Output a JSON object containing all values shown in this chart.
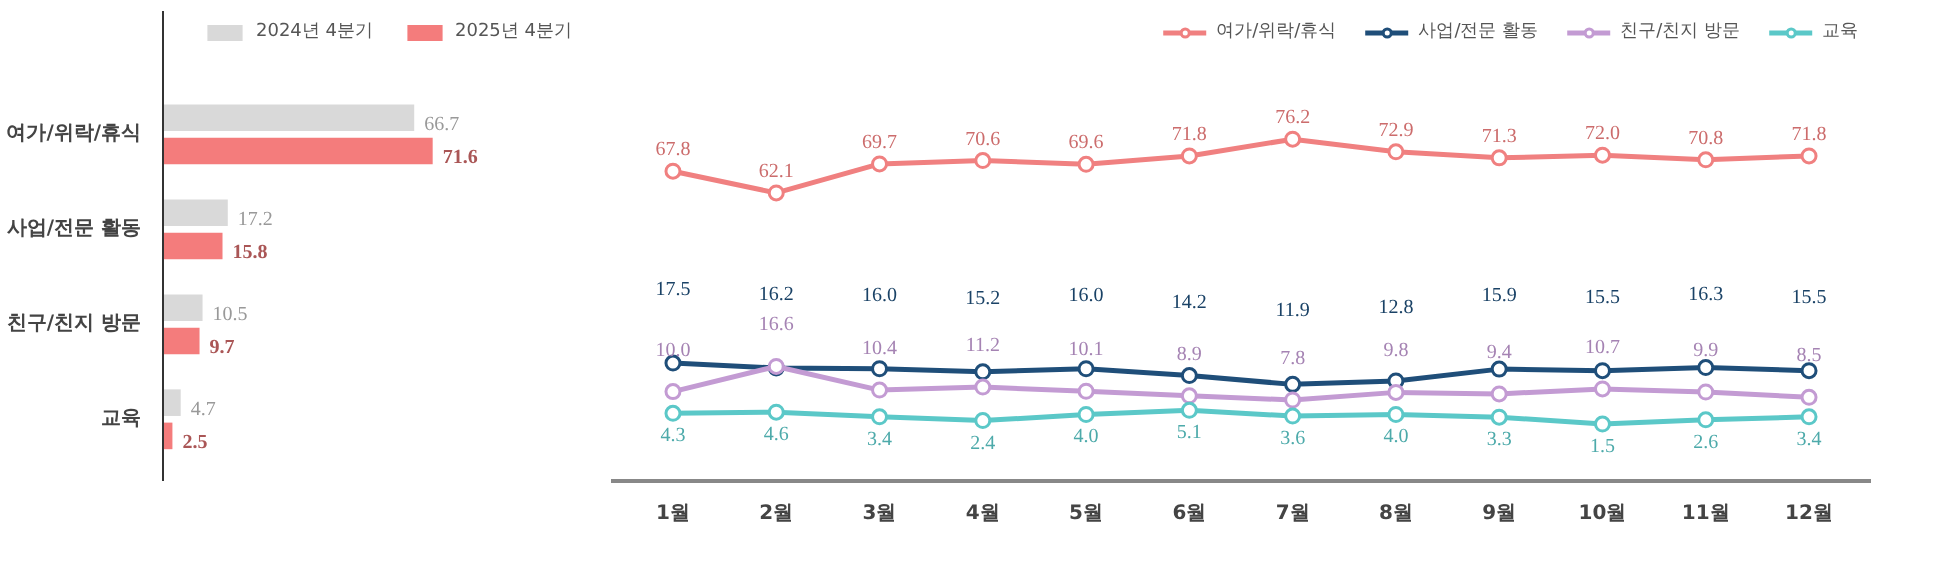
{
  "chart_data": [
    {
      "type": "bar",
      "orientation": "horizontal",
      "categories": [
        "여가/위락/휴식",
        "사업/전문 활동",
        "친구/친지 방문",
        "교육"
      ],
      "series": [
        {
          "name": "2024년 4분기",
          "color": "#d9d9d9",
          "values": [
            66.7,
            17.2,
            10.5,
            4.7
          ]
        },
        {
          "name": "2025년 4분기",
          "color": "#f47c7c",
          "values": [
            71.6,
            15.8,
            9.7,
            2.5
          ]
        }
      ],
      "tick_labels": "y",
      "data_labels": true,
      "legend": "top right",
      "grid": false
    },
    {
      "type": "line",
      "categories": [
        "1월",
        "2월",
        "3월",
        "4월",
        "5월",
        "6월",
        "7월",
        "8월",
        "9월",
        "10월",
        "11월",
        "12월"
      ],
      "series": [
        {
          "name": "여가/위락/휴식",
          "color": "#f08080",
          "values": [
            67.8,
            62.1,
            69.7,
            70.6,
            69.6,
            71.8,
            76.2,
            72.9,
            71.3,
            72.0,
            70.8,
            71.8
          ],
          "value_labels": [
            "67.8",
            "62.1",
            "69.7",
            "70.6",
            "69.6",
            "71.8",
            "76.2",
            "72.9",
            "71.3",
            "72.0",
            "70.8",
            "71.8"
          ]
        },
        {
          "name": "사업/전문 활동",
          "color": "#1f4e79",
          "values": [
            17.5,
            16.2,
            16.0,
            15.2,
            16.0,
            14.2,
            11.9,
            12.8,
            15.9,
            15.5,
            16.3,
            15.5
          ],
          "value_labels": [
            "17.5",
            "16.2",
            "16.0",
            "15.2",
            "16.0",
            "14.2",
            "11.9",
            "12.8",
            "15.9",
            "15.5",
            "16.3",
            "15.5"
          ]
        },
        {
          "name": "친구/친지 방문",
          "color": "#c39bd3",
          "values": [
            10.0,
            16.6,
            10.4,
            11.2,
            10.1,
            8.9,
            7.8,
            9.8,
            9.4,
            10.7,
            9.9,
            8.5
          ],
          "value_labels": [
            "10.0",
            "16.6",
            "10.4",
            "11.2",
            "10.1",
            "8.9",
            "7.8",
            "9.8",
            "9.4",
            "10.7",
            "9.9",
            "8.5"
          ]
        },
        {
          "name": "교육",
          "color": "#5bc8c8",
          "values": [
            4.3,
            4.6,
            3.4,
            2.4,
            4.0,
            5.1,
            3.6,
            4.0,
            3.3,
            1.5,
            2.6,
            3.4
          ],
          "value_labels": [
            "4.3",
            "4.6",
            "3.4",
            "2.4",
            "4.0",
            "5.1",
            "3.6",
            "4.0",
            "3.3",
            "1.5",
            "2.6",
            "3.4"
          ]
        }
      ],
      "tick_labels": "x",
      "data_labels": true,
      "marker": "circle",
      "line_style": "solid",
      "legend": "top right",
      "grid": false
    }
  ]
}
